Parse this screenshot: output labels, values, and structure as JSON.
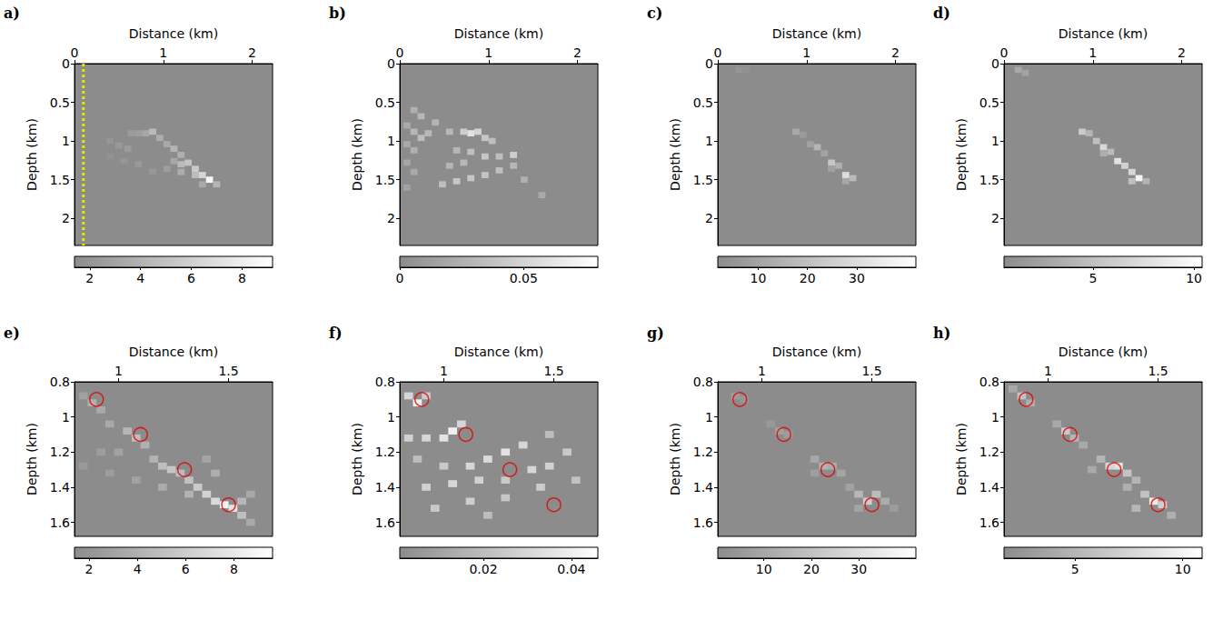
{
  "chart_data": [
    {
      "type": "heatmap",
      "panel": "a)",
      "xlabel": "Distance (km)",
      "ylabel": "Depth (km)",
      "xlim": [
        0,
        2.23
      ],
      "ylim": [
        0,
        2.35
      ],
      "xticks": [
        0,
        1,
        2
      ],
      "yticks": [
        0,
        0.5,
        1,
        1.5,
        2
      ],
      "cell": [
        0.08,
        0.08
      ],
      "cells": [
        [
          0.64,
          0.9,
          2.4
        ],
        [
          0.72,
          0.9,
          2.6
        ],
        [
          0.8,
          0.9,
          3.2
        ],
        [
          0.88,
          0.88,
          4.5
        ],
        [
          0.4,
          1.0,
          2.0
        ],
        [
          0.5,
          1.06,
          2.2
        ],
        [
          0.6,
          1.1,
          2.4
        ],
        [
          0.4,
          1.2,
          1.9
        ],
        [
          0.56,
          1.26,
          2.1
        ],
        [
          0.72,
          1.3,
          2.2
        ],
        [
          0.96,
          0.96,
          3.6
        ],
        [
          1.04,
          1.04,
          3.4
        ],
        [
          1.12,
          1.1,
          4.2
        ],
        [
          1.2,
          1.18,
          3.8
        ],
        [
          1.12,
          1.26,
          3.2
        ],
        [
          1.2,
          1.3,
          4.5
        ],
        [
          1.28,
          1.28,
          5.2
        ],
        [
          1.36,
          1.36,
          5.6
        ],
        [
          1.2,
          1.4,
          3.6
        ],
        [
          1.36,
          1.44,
          4.8
        ],
        [
          1.44,
          1.44,
          6.4
        ],
        [
          1.52,
          1.5,
          8.6
        ],
        [
          1.6,
          1.56,
          4.2
        ],
        [
          1.44,
          1.56,
          3.4
        ],
        [
          1.04,
          1.36,
          2.6
        ],
        [
          0.88,
          1.4,
          2.2
        ]
      ],
      "colorbar": {
        "range": [
          1.4,
          9.2
        ],
        "ticks": [
          2,
          4,
          6,
          8
        ],
        "colors": [
          "#8c8c8c",
          "#ffffff"
        ]
      },
      "receiver_line": {
        "x": 0.1,
        "color": "#e6e600",
        "line_style": "dotted"
      }
    },
    {
      "type": "heatmap",
      "panel": "b)",
      "xlabel": "Distance (km)",
      "ylabel": "Depth (km)",
      "xlim": [
        0,
        2.23
      ],
      "ylim": [
        0,
        2.35
      ],
      "xticks": [
        0,
        1,
        2
      ],
      "yticks": [
        0,
        0.5,
        1,
        1.5,
        2
      ],
      "cell": [
        0.08,
        0.08
      ],
      "cells": [
        [
          0.16,
          0.6,
          0.025
        ],
        [
          0.24,
          0.68,
          0.03
        ],
        [
          0.08,
          0.8,
          0.02
        ],
        [
          0.16,
          0.88,
          0.03
        ],
        [
          0.24,
          0.96,
          0.035
        ],
        [
          0.32,
          0.9,
          0.03
        ],
        [
          0.08,
          1.04,
          0.02
        ],
        [
          0.16,
          1.12,
          0.025
        ],
        [
          0.08,
          1.28,
          0.018
        ],
        [
          0.16,
          1.4,
          0.02
        ],
        [
          0.08,
          1.6,
          0.015
        ],
        [
          0.4,
          0.76,
          0.028
        ],
        [
          0.56,
          0.88,
          0.03
        ],
        [
          0.72,
          0.88,
          0.045
        ],
        [
          0.8,
          0.9,
          0.06
        ],
        [
          0.88,
          0.88,
          0.05
        ],
        [
          0.96,
          0.96,
          0.04
        ],
        [
          1.04,
          1.0,
          0.035
        ],
        [
          0.64,
          1.12,
          0.03
        ],
        [
          0.8,
          1.14,
          0.035
        ],
        [
          0.96,
          1.2,
          0.04
        ],
        [
          1.12,
          1.2,
          0.035
        ],
        [
          1.28,
          1.18,
          0.045
        ],
        [
          0.48,
          1.56,
          0.035
        ],
        [
          0.64,
          1.52,
          0.04
        ],
        [
          0.8,
          1.48,
          0.04
        ],
        [
          0.96,
          1.44,
          0.038
        ],
        [
          1.12,
          1.38,
          0.035
        ],
        [
          1.28,
          1.32,
          0.03
        ],
        [
          0.56,
          1.32,
          0.028
        ],
        [
          0.72,
          1.28,
          0.03
        ],
        [
          1.4,
          1.5,
          0.025
        ],
        [
          1.6,
          1.7,
          0.02
        ]
      ],
      "colorbar": {
        "range": [
          0,
          0.08
        ],
        "ticks": [
          0,
          0.05
        ],
        "colors": [
          "#8c8c8c",
          "#ffffff"
        ]
      }
    },
    {
      "type": "heatmap",
      "panel": "c)",
      "xlabel": "Distance (km)",
      "ylabel": "Depth (km)",
      "xlim": [
        0,
        2.23
      ],
      "ylim": [
        0,
        2.35
      ],
      "xticks": [
        0,
        1,
        2
      ],
      "yticks": [
        0,
        0.5,
        1,
        1.5,
        2
      ],
      "cell": [
        0.08,
        0.08
      ],
      "cells": [
        [
          0.88,
          0.88,
          12
        ],
        [
          0.96,
          0.92,
          7
        ],
        [
          1.04,
          1.04,
          9
        ],
        [
          1.12,
          1.08,
          16
        ],
        [
          1.2,
          1.16,
          10
        ],
        [
          1.28,
          1.28,
          22
        ],
        [
          1.36,
          1.32,
          14
        ],
        [
          1.44,
          1.44,
          30
        ],
        [
          1.52,
          1.48,
          18
        ],
        [
          0.24,
          0.08,
          5
        ],
        [
          0.32,
          0.08,
          4
        ],
        [
          1.28,
          1.36,
          9
        ],
        [
          1.44,
          1.52,
          11
        ]
      ],
      "colorbar": {
        "range": [
          1.8,
          42
        ],
        "ticks": [
          10,
          20,
          30
        ],
        "colors": [
          "#8c8c8c",
          "#ffffff"
        ]
      }
    },
    {
      "type": "heatmap",
      "panel": "d)",
      "xlabel": "Distance (km)",
      "ylabel": "Depth (km)",
      "xlim": [
        0,
        2.23
      ],
      "ylim": [
        0,
        2.35
      ],
      "xticks": [
        0,
        1,
        2
      ],
      "yticks": [
        0,
        0.5,
        1,
        1.5,
        2
      ],
      "cell": [
        0.08,
        0.08
      ],
      "cells": [
        [
          0.88,
          0.88,
          6
        ],
        [
          0.96,
          0.9,
          4
        ],
        [
          1.04,
          1.0,
          5
        ],
        [
          1.12,
          1.08,
          7
        ],
        [
          1.2,
          1.14,
          4.5
        ],
        [
          1.28,
          1.26,
          8
        ],
        [
          1.36,
          1.32,
          6.5
        ],
        [
          1.44,
          1.4,
          7
        ],
        [
          1.52,
          1.48,
          9.5
        ],
        [
          1.44,
          1.52,
          5
        ],
        [
          0.16,
          0.08,
          3
        ],
        [
          0.24,
          0.12,
          2.5
        ],
        [
          1.12,
          1.16,
          3.5
        ],
        [
          1.6,
          1.52,
          4
        ]
      ],
      "colorbar": {
        "range": [
          0.6,
          10.4
        ],
        "ticks": [
          5,
          10
        ],
        "colors": [
          "#8c8c8c",
          "#ffffff"
        ]
      }
    },
    {
      "type": "heatmap",
      "panel": "e)",
      "xlabel": "Distance (km)",
      "ylabel": "Depth (km)",
      "xlim": [
        0.8,
        1.7
      ],
      "ylim": [
        0.8,
        1.68
      ],
      "xticks": [
        1,
        1.5
      ],
      "yticks": [
        0.8,
        1,
        1.2,
        1.4,
        1.6
      ],
      "cell": [
        0.04,
        0.04
      ],
      "cells": [
        [
          0.84,
          0.88,
          3
        ],
        [
          0.88,
          0.92,
          4
        ],
        [
          0.92,
          0.96,
          3.5
        ],
        [
          0.96,
          1.04,
          3.5
        ],
        [
          1.04,
          1.08,
          4.5
        ],
        [
          1.08,
          1.12,
          5
        ],
        [
          1.12,
          1.16,
          4
        ],
        [
          1.0,
          1.2,
          3
        ],
        [
          0.92,
          1.2,
          2.6
        ],
        [
          1.16,
          1.24,
          4.2
        ],
        [
          1.2,
          1.28,
          5
        ],
        [
          1.24,
          1.3,
          5.5
        ],
        [
          1.28,
          1.32,
          4.8
        ],
        [
          1.32,
          1.36,
          5.2
        ],
        [
          1.36,
          1.4,
          5.8
        ],
        [
          1.4,
          1.44,
          6.4
        ],
        [
          1.44,
          1.48,
          7
        ],
        [
          1.48,
          1.5,
          8.8
        ],
        [
          1.52,
          1.52,
          7.5
        ],
        [
          1.56,
          1.48,
          4.5
        ],
        [
          1.56,
          1.56,
          5
        ],
        [
          1.6,
          1.44,
          3.4
        ],
        [
          1.08,
          1.36,
          3
        ],
        [
          1.2,
          1.4,
          3.6
        ],
        [
          1.32,
          1.44,
          4.2
        ],
        [
          1.4,
          1.24,
          3.2
        ],
        [
          1.44,
          1.32,
          3.8
        ],
        [
          1.6,
          1.6,
          3.5
        ],
        [
          0.84,
          1.28,
          2.4
        ],
        [
          0.96,
          1.32,
          2.6
        ]
      ],
      "colorbar": {
        "range": [
          1.4,
          9.6
        ],
        "ticks": [
          2,
          4,
          6,
          8
        ],
        "colors": [
          "#8c8c8c",
          "#ffffff"
        ]
      },
      "sources": {
        "points": [
          [
            0.9,
            0.9
          ],
          [
            1.1,
            1.1
          ],
          [
            1.3,
            1.3
          ],
          [
            1.5,
            1.5
          ]
        ],
        "color": "#e00000",
        "marker": "circle"
      }
    },
    {
      "type": "heatmap",
      "panel": "f)",
      "xlabel": "Distance (km)",
      "ylabel": "Depth (km)",
      "xlim": [
        0.8,
        1.7
      ],
      "ylim": [
        0.8,
        1.68
      ],
      "xticks": [
        1,
        1.5
      ],
      "yticks": [
        0.8,
        1,
        1.2,
        1.4,
        1.6
      ],
      "cell": [
        0.04,
        0.04
      ],
      "cells": [
        [
          0.84,
          0.88,
          0.03
        ],
        [
          0.88,
          0.92,
          0.04
        ],
        [
          0.92,
          0.88,
          0.025
        ],
        [
          0.84,
          1.12,
          0.028
        ],
        [
          0.92,
          1.12,
          0.03
        ],
        [
          1.0,
          1.12,
          0.035
        ],
        [
          1.04,
          1.08,
          0.04
        ],
        [
          1.08,
          1.04,
          0.03
        ],
        [
          0.88,
          1.24,
          0.02
        ],
        [
          1.0,
          1.28,
          0.025
        ],
        [
          1.12,
          1.28,
          0.03
        ],
        [
          1.2,
          1.24,
          0.032
        ],
        [
          1.28,
          1.2,
          0.035
        ],
        [
          1.36,
          1.16,
          0.03
        ],
        [
          0.92,
          1.4,
          0.028
        ],
        [
          1.04,
          1.38,
          0.03
        ],
        [
          1.16,
          1.36,
          0.028
        ],
        [
          1.28,
          1.36,
          0.025
        ],
        [
          1.4,
          1.3,
          0.03
        ],
        [
          1.48,
          1.28,
          0.028
        ],
        [
          1.56,
          1.2,
          0.025
        ],
        [
          0.96,
          1.52,
          0.025
        ],
        [
          1.12,
          1.48,
          0.027
        ],
        [
          1.28,
          1.46,
          0.024
        ],
        [
          1.44,
          1.4,
          0.026
        ],
        [
          1.6,
          1.36,
          0.022
        ],
        [
          1.48,
          1.1,
          0.02
        ],
        [
          1.2,
          1.56,
          0.02
        ]
      ],
      "colorbar": {
        "range": [
          0.001,
          0.046
        ],
        "ticks": [
          0.02,
          0.04
        ],
        "colors": [
          "#8c8c8c",
          "#ffffff"
        ]
      },
      "sources": {
        "points": [
          [
            0.9,
            0.9
          ],
          [
            1.1,
            1.1
          ],
          [
            1.3,
            1.3
          ],
          [
            1.5,
            1.5
          ]
        ],
        "color": "#e00000",
        "marker": "circle"
      }
    },
    {
      "type": "heatmap",
      "panel": "g)",
      "xlabel": "Distance (km)",
      "ylabel": "Depth (km)",
      "xlim": [
        0.8,
        1.7
      ],
      "ylim": [
        0.8,
        1.68
      ],
      "xticks": [
        1,
        1.5
      ],
      "yticks": [
        0.8,
        1,
        1.2,
        1.4,
        1.6
      ],
      "cell": [
        0.04,
        0.04
      ],
      "cells": [
        [
          0.88,
          0.88,
          6
        ],
        [
          0.92,
          0.9,
          4
        ],
        [
          1.04,
          1.04,
          5
        ],
        [
          1.08,
          1.08,
          8
        ],
        [
          1.12,
          1.1,
          6
        ],
        [
          1.24,
          1.24,
          10
        ],
        [
          1.28,
          1.28,
          14
        ],
        [
          1.32,
          1.28,
          12
        ],
        [
          1.36,
          1.32,
          9
        ],
        [
          1.4,
          1.4,
          8
        ],
        [
          1.44,
          1.44,
          16
        ],
        [
          1.48,
          1.48,
          24
        ],
        [
          1.52,
          1.44,
          18
        ],
        [
          1.56,
          1.48,
          12
        ],
        [
          1.44,
          1.52,
          9
        ],
        [
          1.24,
          1.32,
          7
        ],
        [
          1.6,
          1.52,
          6
        ]
      ],
      "colorbar": {
        "range": [
          0.3,
          42
        ],
        "ticks": [
          10,
          20,
          30
        ],
        "colors": [
          "#8c8c8c",
          "#ffffff"
        ]
      },
      "sources": {
        "points": [
          [
            0.9,
            0.9
          ],
          [
            1.1,
            1.1
          ],
          [
            1.3,
            1.3
          ],
          [
            1.5,
            1.5
          ]
        ],
        "color": "#e00000",
        "marker": "circle"
      }
    },
    {
      "type": "heatmap",
      "panel": "h)",
      "xlabel": "Distance (km)",
      "ylabel": "Depth (km)",
      "xlim": [
        0.8,
        1.7
      ],
      "ylim": [
        0.8,
        1.68
      ],
      "xticks": [
        1,
        1.5
      ],
      "yticks": [
        0.8,
        1,
        1.2,
        1.4,
        1.6
      ],
      "cell": [
        0.04,
        0.04
      ],
      "cells": [
        [
          0.84,
          0.84,
          4
        ],
        [
          0.88,
          0.88,
          6
        ],
        [
          0.92,
          0.92,
          4.5
        ],
        [
          1.04,
          1.04,
          4
        ],
        [
          1.08,
          1.08,
          6.5
        ],
        [
          1.12,
          1.12,
          5
        ],
        [
          1.16,
          1.16,
          4
        ],
        [
          1.24,
          1.24,
          5
        ],
        [
          1.28,
          1.28,
          7.5
        ],
        [
          1.32,
          1.28,
          8.5
        ],
        [
          1.36,
          1.32,
          6
        ],
        [
          1.4,
          1.36,
          5
        ],
        [
          1.44,
          1.44,
          6
        ],
        [
          1.48,
          1.48,
          9.5
        ],
        [
          1.52,
          1.5,
          7
        ],
        [
          1.4,
          1.52,
          5
        ],
        [
          1.56,
          1.56,
          4.5
        ],
        [
          1.2,
          1.3,
          4
        ],
        [
          1.36,
          1.4,
          4.5
        ]
      ],
      "colorbar": {
        "range": [
          1.7,
          10.9
        ],
        "ticks": [
          5,
          10
        ],
        "colors": [
          "#8c8c8c",
          "#ffffff"
        ]
      },
      "sources": {
        "points": [
          [
            0.9,
            0.9
          ],
          [
            1.1,
            1.1
          ],
          [
            1.3,
            1.3
          ],
          [
            1.5,
            1.5
          ]
        ],
        "color": "#e00000",
        "marker": "circle"
      }
    }
  ]
}
